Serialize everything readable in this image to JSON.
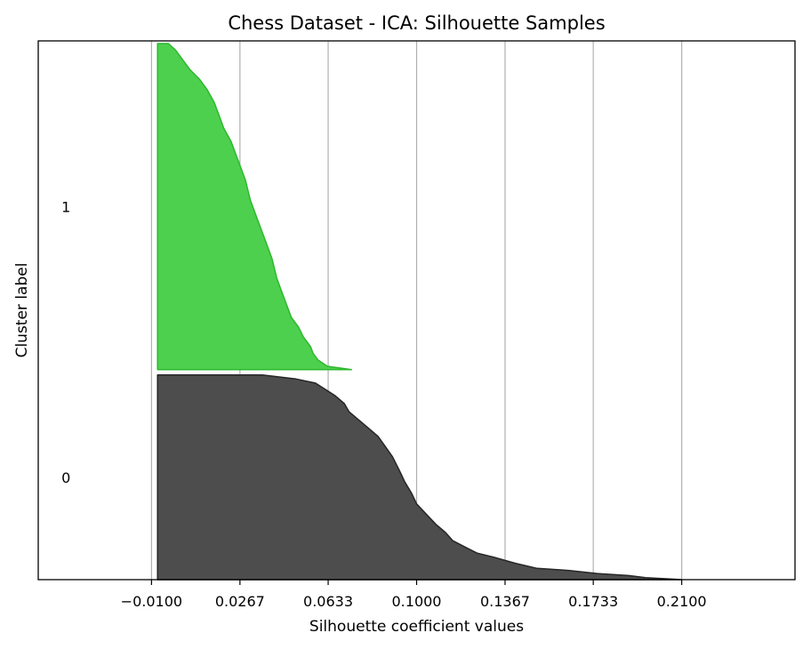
{
  "chart_data": {
    "type": "area",
    "title": "Chess Dataset - ICA: Silhouette Samples",
    "xlabel": "Silhouette coefficient values",
    "ylabel": "Cluster label",
    "xlim": [
      -0.057,
      0.257
    ],
    "x_ticks": [
      "−0.0100",
      "0.0267",
      "0.0633",
      "0.1000",
      "0.1367",
      "0.1733",
      "0.2100"
    ],
    "x_tick_values": [
      -0.01,
      0.0267,
      0.0633,
      0.1,
      0.1367,
      0.1733,
      0.21
    ],
    "grid": "vertical",
    "series": [
      {
        "label": "0",
        "color": "#4d4d4d",
        "edge": "#262626",
        "y_range": [
          0,
          0.38
        ],
        "profile": [
          [
            0.0,
            0.21
          ],
          [
            0.01,
            0.195
          ],
          [
            0.02,
            0.188
          ],
          [
            0.03,
            0.175
          ],
          [
            0.045,
            0.163
          ],
          [
            0.055,
            0.15
          ],
          [
            0.08,
            0.141
          ],
          [
            0.11,
            0.132
          ],
          [
            0.13,
            0.125
          ],
          [
            0.16,
            0.12
          ],
          [
            0.19,
            0.115
          ],
          [
            0.23,
            0.112
          ],
          [
            0.27,
            0.108
          ],
          [
            0.32,
            0.104
          ],
          [
            0.37,
            0.1
          ],
          [
            0.42,
            0.098
          ],
          [
            0.48,
            0.095
          ],
          [
            0.53,
            0.093
          ],
          [
            0.6,
            0.09
          ],
          [
            0.65,
            0.087
          ],
          [
            0.7,
            0.084
          ],
          [
            0.74,
            0.08
          ],
          [
            0.78,
            0.076
          ],
          [
            0.82,
            0.072
          ],
          [
            0.86,
            0.07
          ],
          [
            0.9,
            0.066
          ],
          [
            0.93,
            0.062
          ],
          [
            0.96,
            0.058
          ],
          [
            0.98,
            0.05
          ],
          [
            1.0,
            0.036
          ]
        ]
      },
      {
        "label": "1",
        "color": "#4dd04d",
        "edge": "#2db82d",
        "y_range": [
          0.39,
          0.995
        ],
        "profile": [
          [
            0.0,
            0.073
          ],
          [
            0.01,
            0.063
          ],
          [
            0.03,
            0.059
          ],
          [
            0.05,
            0.057
          ],
          [
            0.07,
            0.056
          ],
          [
            0.1,
            0.053
          ],
          [
            0.13,
            0.051
          ],
          [
            0.16,
            0.048
          ],
          [
            0.2,
            0.046
          ],
          [
            0.24,
            0.044
          ],
          [
            0.28,
            0.042
          ],
          [
            0.34,
            0.04
          ],
          [
            0.4,
            0.037
          ],
          [
            0.46,
            0.034
          ],
          [
            0.52,
            0.031
          ],
          [
            0.58,
            0.029
          ],
          [
            0.62,
            0.027
          ],
          [
            0.66,
            0.025
          ],
          [
            0.7,
            0.023
          ],
          [
            0.74,
            0.02
          ],
          [
            0.78,
            0.018
          ],
          [
            0.82,
            0.016
          ],
          [
            0.86,
            0.013
          ],
          [
            0.89,
            0.01
          ],
          [
            0.92,
            0.006
          ],
          [
            0.95,
            0.003
          ],
          [
            0.98,
            0.0
          ],
          [
            1.0,
            -0.003
          ]
        ]
      }
    ],
    "x_floor": -0.0075
  }
}
